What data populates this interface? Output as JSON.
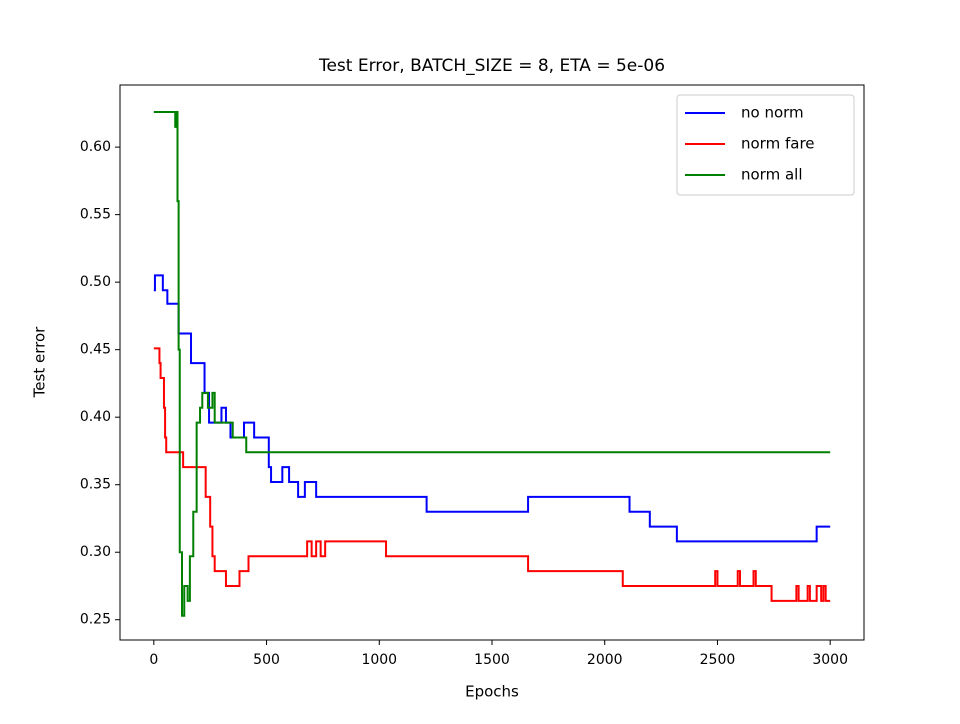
{
  "chart_data": {
    "type": "line",
    "title": "Test Error, BATCH_SIZE = 8, ETA = 5e-06",
    "x_label": "Epochs",
    "y_label": "Test error",
    "drawstyle": "steps-post",
    "legend": "upper right",
    "xlim": [
      -150,
      3150
    ],
    "ylim": [
      0.235,
      0.646
    ],
    "xticks": [
      0,
      500,
      1000,
      1500,
      2000,
      2500,
      3000
    ],
    "yticks": [
      {
        "value": 0.25,
        "label": "0.25"
      },
      {
        "value": 0.3,
        "label": "0.30"
      },
      {
        "value": 0.35,
        "label": "0.35"
      },
      {
        "value": 0.4,
        "label": "0.40"
      },
      {
        "value": 0.45,
        "label": "0.45"
      },
      {
        "value": 0.5,
        "label": "0.50"
      },
      {
        "value": 0.55,
        "label": "0.55"
      },
      {
        "value": 0.6,
        "label": "0.60"
      }
    ],
    "series": [
      {
        "name": "no norm",
        "color": "#0000ff",
        "x": [
          0,
          5,
          40,
          60,
          110,
          165,
          225,
          245,
          300,
          320,
          340,
          400,
          445,
          510,
          520,
          570,
          600,
          640,
          670,
          720,
          1210,
          1660,
          2110,
          2200,
          2320,
          2940,
          3000
        ],
        "values": [
          0.494,
          0.505,
          0.494,
          0.484,
          0.462,
          0.44,
          0.418,
          0.396,
          0.407,
          0.396,
          0.385,
          0.396,
          0.385,
          0.363,
          0.352,
          0.363,
          0.352,
          0.341,
          0.352,
          0.341,
          0.33,
          0.341,
          0.33,
          0.319,
          0.308,
          0.319,
          0.319
        ]
      },
      {
        "name": "norm fare",
        "color": "#ff0000",
        "x": [
          0,
          25,
          30,
          45,
          50,
          55,
          130,
          230,
          250,
          260,
          270,
          300,
          320,
          380,
          420,
          680,
          700,
          720,
          740,
          760,
          1030,
          1660,
          2080,
          2490,
          2500,
          2590,
          2600,
          2660,
          2670,
          2740,
          2850,
          2860,
          2900,
          2910,
          2940,
          2960,
          2970,
          2980,
          3000
        ],
        "values": [
          0.451,
          0.44,
          0.429,
          0.407,
          0.385,
          0.374,
          0.363,
          0.341,
          0.319,
          0.297,
          0.286,
          0.286,
          0.275,
          0.286,
          0.297,
          0.308,
          0.297,
          0.308,
          0.297,
          0.308,
          0.297,
          0.286,
          0.275,
          0.286,
          0.275,
          0.286,
          0.275,
          0.286,
          0.275,
          0.264,
          0.275,
          0.264,
          0.275,
          0.264,
          0.275,
          0.264,
          0.275,
          0.264,
          0.264
        ]
      },
      {
        "name": "norm all",
        "color": "#008000",
        "x": [
          0,
          95,
          100,
          105,
          110,
          115,
          125,
          135,
          150,
          160,
          175,
          190,
          205,
          215,
          240,
          260,
          270,
          350,
          410,
          3000
        ],
        "values": [
          0.626,
          0.615,
          0.626,
          0.56,
          0.45,
          0.3,
          0.253,
          0.275,
          0.264,
          0.297,
          0.33,
          0.396,
          0.407,
          0.418,
          0.407,
          0.418,
          0.396,
          0.385,
          0.374,
          0.374
        ]
      }
    ]
  }
}
